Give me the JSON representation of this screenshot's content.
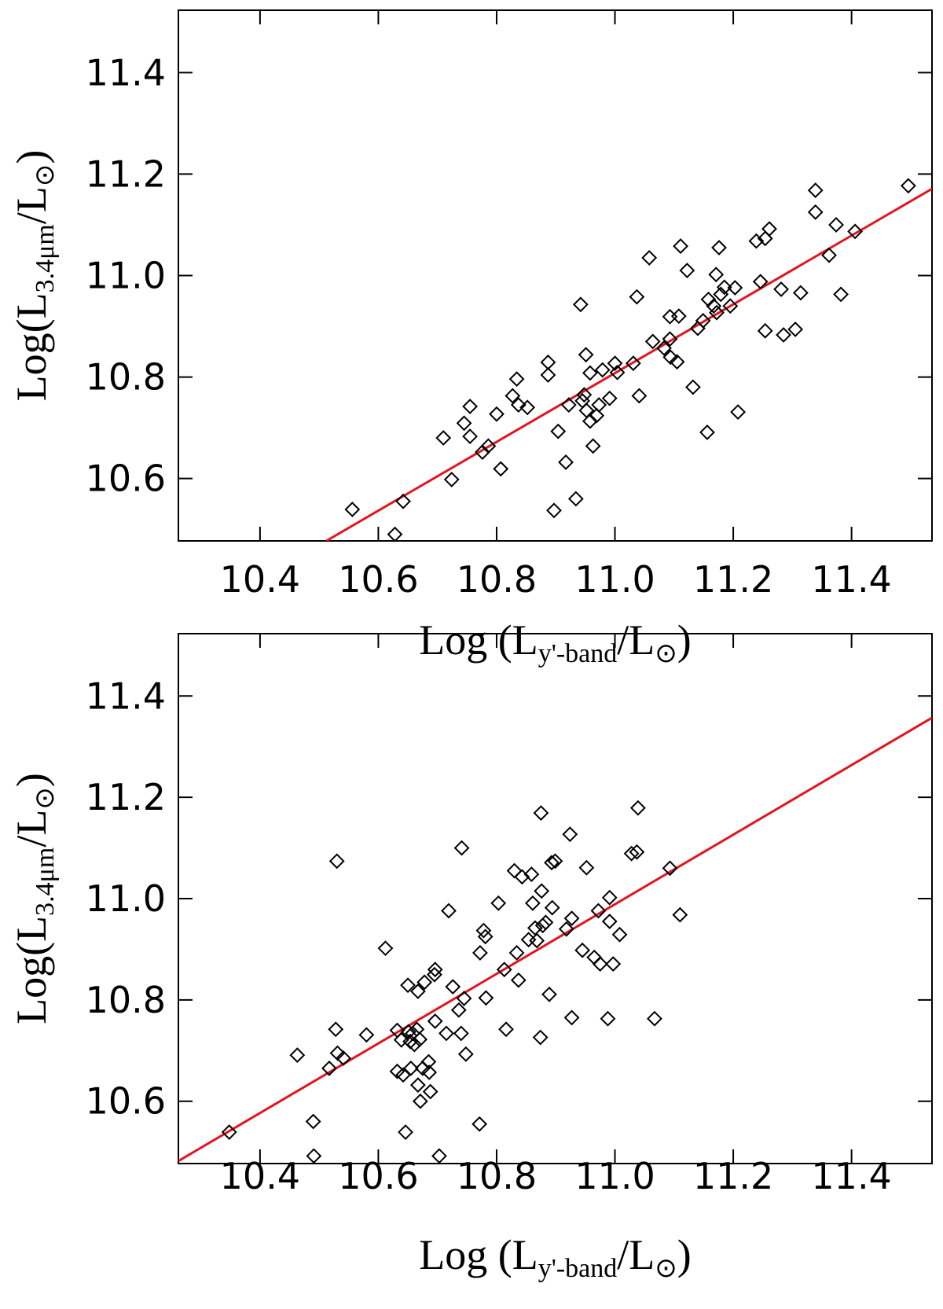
{
  "chart_data": [
    {
      "type": "scatter",
      "xlabel": [
        "Log (L",
        "y'-band",
        "/L",
        "⊙",
        ")"
      ],
      "ylabel": [
        "Log(L",
        "3.4μm",
        "/L",
        "⊙",
        ")"
      ],
      "xlim": [
        10.262,
        11.536
      ],
      "ylim": [
        10.477,
        11.523
      ],
      "xticks": [
        10.4,
        10.6,
        10.8,
        {
          "value": 11,
          "label": "11.0"
        },
        11.2,
        11.4
      ],
      "yticks": [
        10.6,
        10.8,
        {
          "value": 11,
          "label": "11.0"
        },
        11.2,
        11.4
      ],
      "marker_color": "#000000",
      "x": [
        10.556,
        10.628,
        10.642,
        10.71,
        10.724,
        10.745,
        10.755,
        10.755,
        10.776,
        10.786,
        10.8,
        10.807,
        10.827,
        10.834,
        10.837,
        10.852,
        10.887,
        10.887,
        10.897,
        10.904,
        10.917,
        10.922,
        10.934,
        10.942,
        10.945,
        10.948,
        10.951,
        10.952,
        10.958,
        10.958,
        10.963,
        10.969,
        10.973,
        10.979,
        10.991,
        11.0,
        11.004,
        11.031,
        11.037,
        11.041,
        11.058,
        11.064,
        11.083,
        11.093,
        11.093,
        11.094,
        11.105,
        11.108,
        11.111,
        11.122,
        11.132,
        11.14,
        11.149,
        11.156,
        11.158,
        11.167,
        11.171,
        11.172,
        11.176,
        11.179,
        11.185,
        11.195,
        11.203,
        11.208,
        11.239,
        11.246,
        11.254,
        11.254,
        11.261,
        11.281,
        11.285,
        11.305,
        11.314,
        11.339,
        11.339,
        11.362,
        11.374,
        11.382,
        11.406,
        11.496
      ],
      "y": [
        10.539,
        10.49,
        10.555,
        10.68,
        10.598,
        10.709,
        10.742,
        10.683,
        10.652,
        10.664,
        10.727,
        10.619,
        10.763,
        10.796,
        10.745,
        10.74,
        10.829,
        10.804,
        10.537,
        10.693,
        10.632,
        10.745,
        10.56,
        10.943,
        10.753,
        10.765,
        10.844,
        10.734,
        10.808,
        10.713,
        10.664,
        10.724,
        10.745,
        10.814,
        10.758,
        10.827,
        10.809,
        10.827,
        10.958,
        10.763,
        11.035,
        10.87,
        10.857,
        10.919,
        10.875,
        10.839,
        10.83,
        10.92,
        11.058,
        11.01,
        10.78,
        10.896,
        10.911,
        10.691,
        10.953,
        10.94,
        11.002,
        10.927,
        11.055,
        10.963,
        10.977,
        10.94,
        10.976,
        10.731,
        11.068,
        10.988,
        11.073,
        10.891,
        11.092,
        10.973,
        10.883,
        10.894,
        10.966,
        11.168,
        11.125,
        11.04,
        11.1,
        10.963,
        11.087,
        11.177
      ],
      "fit": {
        "color": "#e3141e",
        "x": [
          10.512,
          11.536
        ],
        "y": [
          10.477,
          11.171
        ]
      }
    },
    {
      "type": "scatter",
      "xlabel": [
        "Log (L",
        "y'-band",
        "/L",
        "⊙",
        ")"
      ],
      "ylabel": [
        "Log(L",
        "3.4μm",
        "/L",
        "⊙",
        ")"
      ],
      "xlim": [
        10.262,
        11.536
      ],
      "ylim": [
        10.477,
        11.523
      ],
      "xticks": [
        10.4,
        10.6,
        10.8,
        {
          "value": 11,
          "label": "11.0"
        },
        11.2,
        11.4
      ],
      "yticks": [
        10.6,
        10.8,
        {
          "value": 11,
          "label": "11.0"
        },
        11.2,
        11.4
      ],
      "marker_color": "#000000",
      "x": [
        10.348,
        10.463,
        10.49,
        10.491,
        10.517,
        10.528,
        10.53,
        10.531,
        10.541,
        10.58,
        10.612,
        10.632,
        10.632,
        10.639,
        10.642,
        10.646,
        10.65,
        10.651,
        10.654,
        10.655,
        10.658,
        10.661,
        10.665,
        10.667,
        10.667,
        10.67,
        10.671,
        10.675,
        10.678,
        10.685,
        10.686,
        10.688,
        10.695,
        10.696,
        10.696,
        10.703,
        10.715,
        10.719,
        10.726,
        10.736,
        10.74,
        10.741,
        10.745,
        10.748,
        10.771,
        10.772,
        10.778,
        10.781,
        10.782,
        10.803,
        10.813,
        10.816,
        10.83,
        10.834,
        10.837,
        10.843,
        10.854,
        10.859,
        10.861,
        10.865,
        10.868,
        10.874,
        10.876,
        10.875,
        10.878,
        10.883,
        10.889,
        10.893,
        10.894,
        10.899,
        10.918,
        10.924,
        10.927,
        10.927,
        10.945,
        10.952,
        10.965,
        10.972,
        10.975,
        10.988,
        10.991,
        10.991,
        10.997,
        11.008,
        11.028,
        11.037,
        11.039,
        11.067,
        11.093,
        11.11
      ],
      "y": [
        10.539,
        10.691,
        10.56,
        10.492,
        10.665,
        10.742,
        11.074,
        10.695,
        10.685,
        10.731,
        10.902,
        10.74,
        10.659,
        10.721,
        10.652,
        10.539,
        10.829,
        10.737,
        10.718,
        10.665,
        10.734,
        10.712,
        10.742,
        10.632,
        10.817,
        10.722,
        10.6,
        10.665,
        10.835,
        10.678,
        10.657,
        10.619,
        10.85,
        10.758,
        10.86,
        10.492,
        10.734,
        10.976,
        10.826,
        10.78,
        10.734,
        11.1,
        10.803,
        10.693,
        10.555,
        10.893,
        10.937,
        10.925,
        10.804,
        10.991,
        10.86,
        10.742,
        11.055,
        10.893,
        10.839,
        11.043,
        10.919,
        11.048,
        10.991,
        10.942,
        10.917,
        10.726,
        11.015,
        11.169,
        10.947,
        10.953,
        10.811,
        11.071,
        10.982,
        11.074,
        10.94,
        11.127,
        10.765,
        10.961,
        10.898,
        11.061,
        10.884,
        10.976,
        10.871,
        10.763,
        11.002,
        10.955,
        10.871,
        10.929,
        11.089,
        11.092,
        11.179,
        10.763,
        11.06,
        10.968
      ],
      "fit": {
        "color": "#e3141e",
        "x": [
          10.262,
          11.536
        ],
        "y": [
          10.482,
          11.357
        ]
      }
    }
  ]
}
